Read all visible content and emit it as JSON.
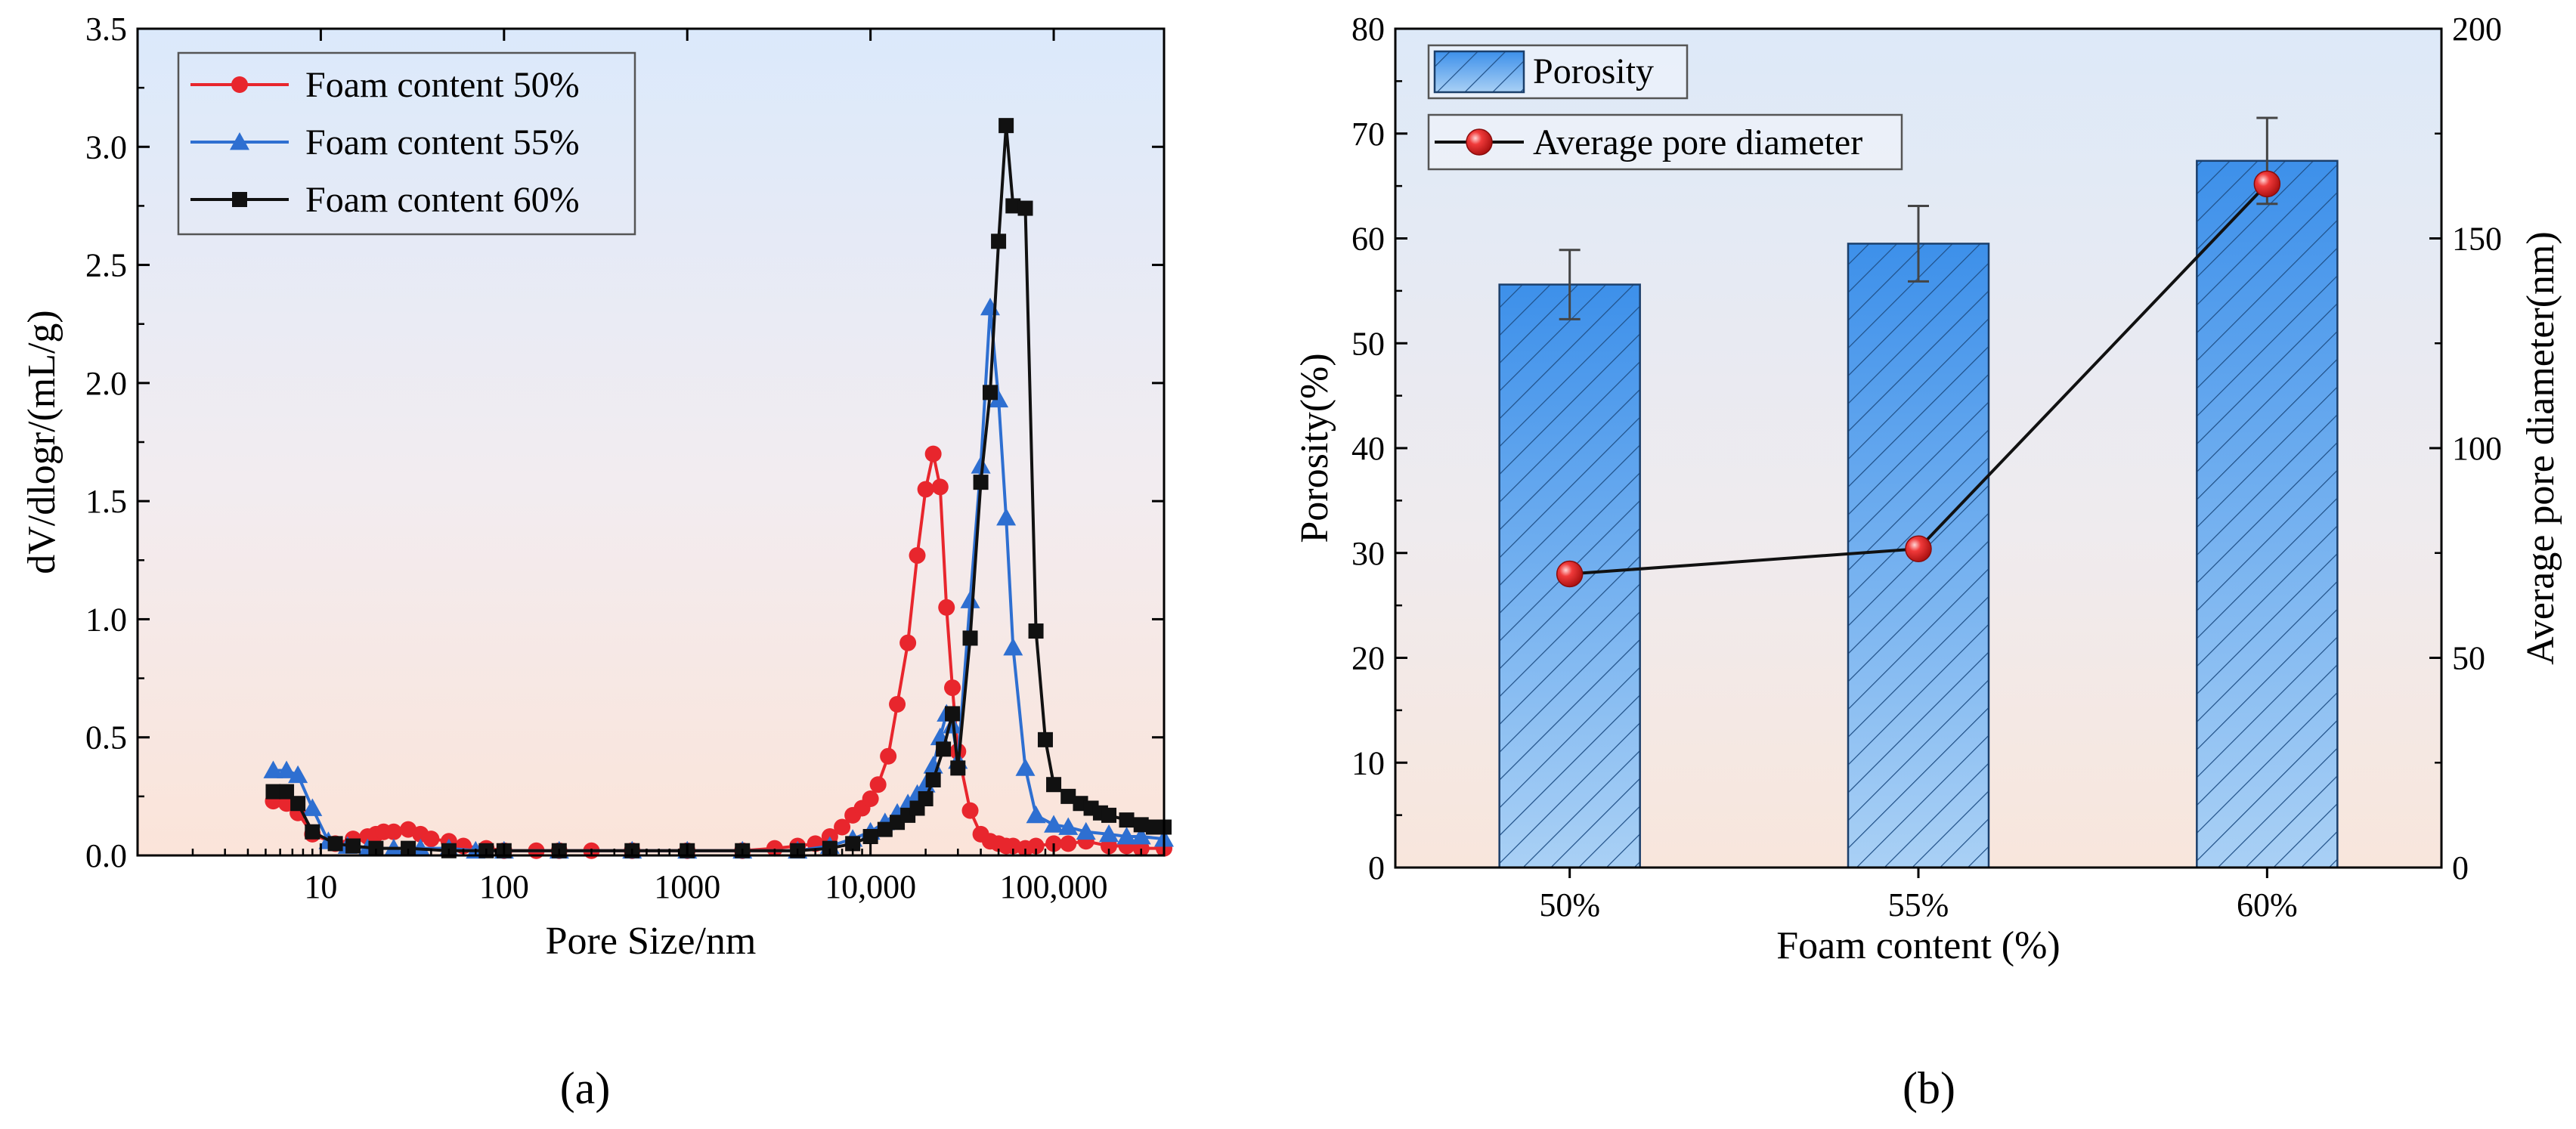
{
  "chart_data": [
    {
      "type": "line",
      "panel_label": "(a)",
      "xlabel": "Pore Size/nm",
      "ylabel": "dV/dlogr/(mL/g)",
      "xscale": "log",
      "xlim": [
        1,
        400000
      ],
      "ylim": [
        0,
        3.5
      ],
      "xticks": [
        10,
        100,
        1000,
        10000,
        100000
      ],
      "xtick_labels": [
        "10",
        "100",
        "1000",
        "10,000",
        "100,000"
      ],
      "yticks": [
        0,
        0.5,
        1.0,
        1.5,
        2.0,
        2.5,
        3.0,
        3.5
      ],
      "ytick_labels": [
        "0.0",
        "0.5",
        "1.0",
        "1.5",
        "2.0",
        "2.5",
        "3.0",
        "3.5"
      ],
      "legend_position": "top-left",
      "series": [
        {
          "name": "Foam content 50%",
          "color": "#e8262d",
          "marker": "circle",
          "x": [
            5.5,
            6.5,
            7.5,
            9,
            12,
            15,
            18,
            20,
            22,
            25,
            30,
            35,
            40,
            50,
            60,
            80,
            100,
            150,
            200,
            300,
            500,
            1000,
            2000,
            3000,
            4000,
            5000,
            6000,
            7000,
            8000,
            9000,
            10000,
            11000,
            12500,
            14000,
            16000,
            18000,
            20000,
            22000,
            24000,
            26000,
            28000,
            30000,
            35000,
            40000,
            45000,
            50000,
            55000,
            60000,
            70000,
            80000,
            100000,
            120000,
            150000,
            200000,
            250000,
            300000,
            400000
          ],
          "y": [
            0.23,
            0.22,
            0.18,
            0.09,
            0.05,
            0.07,
            0.08,
            0.09,
            0.1,
            0.1,
            0.11,
            0.09,
            0.07,
            0.06,
            0.04,
            0.03,
            0.02,
            0.02,
            0.02,
            0.02,
            0.02,
            0.02,
            0.02,
            0.03,
            0.04,
            0.05,
            0.08,
            0.12,
            0.17,
            0.2,
            0.24,
            0.3,
            0.42,
            0.64,
            0.9,
            1.27,
            1.55,
            1.7,
            1.56,
            1.05,
            0.71,
            0.44,
            0.19,
            0.09,
            0.06,
            0.05,
            0.04,
            0.04,
            0.03,
            0.04,
            0.05,
            0.05,
            0.06,
            0.04,
            0.04,
            0.03,
            0.03
          ]
        },
        {
          "name": "Foam content 55%",
          "color": "#2e6fd1",
          "marker": "triangle",
          "x": [
            5.5,
            6.5,
            7.5,
            9,
            11,
            14,
            18,
            25,
            35,
            50,
            70,
            100,
            200,
            500,
            1000,
            2000,
            4000,
            6000,
            8000,
            10000,
            12000,
            14000,
            16000,
            18000,
            20000,
            22000,
            24000,
            26000,
            28000,
            30000,
            35000,
            40000,
            45000,
            50000,
            55000,
            60000,
            70000,
            80000,
            100000,
            120000,
            150000,
            200000,
            250000,
            300000,
            400000
          ],
          "y": [
            0.36,
            0.36,
            0.34,
            0.2,
            0.06,
            0.04,
            0.03,
            0.03,
            0.03,
            0.03,
            0.02,
            0.02,
            0.02,
            0.02,
            0.02,
            0.02,
            0.02,
            0.04,
            0.07,
            0.1,
            0.14,
            0.18,
            0.22,
            0.26,
            0.3,
            0.38,
            0.5,
            0.6,
            0.55,
            0.4,
            1.08,
            1.65,
            2.32,
            1.93,
            1.43,
            0.88,
            0.37,
            0.17,
            0.13,
            0.12,
            0.1,
            0.09,
            0.08,
            0.08,
            0.07
          ]
        },
        {
          "name": "Foam content 60%",
          "color": "#111111",
          "marker": "square",
          "x": [
            5.5,
            6.5,
            7.5,
            9,
            12,
            15,
            20,
            30,
            50,
            80,
            100,
            200,
            500,
            1000,
            2000,
            4000,
            6000,
            8000,
            10000,
            12000,
            14000,
            16000,
            18000,
            20000,
            22000,
            25000,
            28000,
            30000,
            35000,
            40000,
            45000,
            50000,
            55000,
            60000,
            70000,
            80000,
            90000,
            100000,
            120000,
            140000,
            160000,
            180000,
            200000,
            250000,
            300000,
            350000,
            400000
          ],
          "y": [
            0.27,
            0.27,
            0.22,
            0.1,
            0.05,
            0.04,
            0.03,
            0.03,
            0.02,
            0.02,
            0.02,
            0.02,
            0.02,
            0.02,
            0.02,
            0.02,
            0.03,
            0.05,
            0.08,
            0.11,
            0.14,
            0.17,
            0.2,
            0.24,
            0.32,
            0.45,
            0.6,
            0.37,
            0.92,
            1.58,
            1.96,
            2.6,
            3.09,
            2.75,
            2.74,
            0.95,
            0.49,
            0.3,
            0.25,
            0.22,
            0.2,
            0.18,
            0.17,
            0.15,
            0.13,
            0.12,
            0.12
          ]
        }
      ]
    },
    {
      "type": "bar",
      "panel_label": "(b)",
      "xlabel": "Foam content (%)",
      "ylabel": "Porosity(%)",
      "ylabel_right": "Average pore diameter(nm)",
      "categories": [
        "50%",
        "55%",
        "60%"
      ],
      "ylim": [
        0,
        80
      ],
      "ylim_right": [
        0,
        200
      ],
      "yticks": [
        0,
        10,
        20,
        30,
        40,
        50,
        60,
        70,
        80
      ],
      "ytick_labels": [
        "0",
        "10",
        "20",
        "30",
        "40",
        "50",
        "60",
        "70",
        "80"
      ],
      "yticks_right": [
        0,
        50,
        100,
        150,
        200
      ],
      "ytick_labels_right": [
        "0",
        "50",
        "100",
        "150",
        "200"
      ],
      "legend_position": "top-left",
      "series": [
        {
          "name": "Porosity",
          "kind": "bar",
          "axis": "left",
          "color": "#4a9cec",
          "values": [
            55.6,
            59.5,
            67.4
          ],
          "error": [
            3.3,
            3.6,
            4.1
          ]
        },
        {
          "name": "Average pore diameter",
          "kind": "line",
          "axis": "right",
          "color": "#e8262d",
          "marker": "sphere",
          "values": [
            70,
            76,
            163
          ]
        }
      ]
    }
  ]
}
